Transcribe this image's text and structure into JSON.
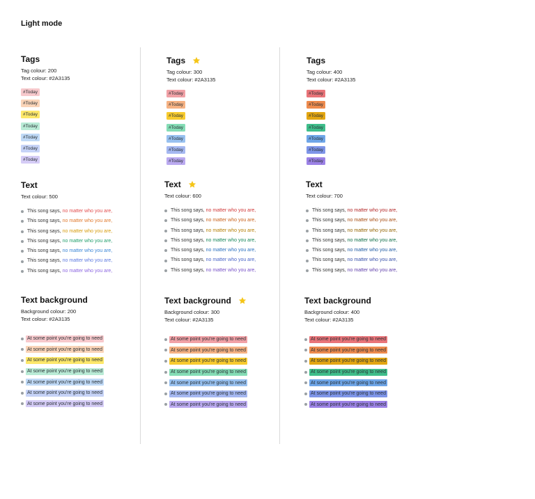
{
  "page": {
    "title": "Light mode"
  },
  "star_color": "#F5C518",
  "columns": [
    {
      "tags": {
        "heading": "Tags",
        "starred": false,
        "tag_colour": "Tag colour: 200",
        "text_colour": "Text colour: #2A3135",
        "tag_label": "#Today",
        "colors": [
          "#F7C9CC",
          "#FAD4B8",
          "#FDE86A",
          "#B9EBD6",
          "#BFD9F6",
          "#C6D3F7",
          "#D5CCF6"
        ]
      },
      "text": {
        "heading": "Text",
        "starred": false,
        "text_colour": "Text colour: 500",
        "prefix": "This song says,",
        "phrase": "no matter who you are,",
        "colors": [
          "#E24C4C",
          "#E0782C",
          "#D69A0A",
          "#1F9E6A",
          "#3B86D6",
          "#5B79E0",
          "#8A64E0"
        ]
      },
      "text_background": {
        "heading": "Text background",
        "starred": false,
        "bg_colour": "Background colour: 200",
        "text_colour": "Text colour: #2A3135",
        "line": "At some point you're going to need",
        "colors": [
          "#F7C9CC",
          "#FAD4B8",
          "#FDE86A",
          "#B9EBD6",
          "#BFD9F6",
          "#C6D3F7",
          "#D5CCF6"
        ]
      }
    },
    {
      "tags": {
        "heading": "Tags",
        "starred": true,
        "tag_colour": "Tag colour: 300",
        "text_colour": "Text colour: #2A3135",
        "tag_label": "#Today",
        "colors": [
          "#F1A1A6",
          "#F6B283",
          "#F8CB2E",
          "#85DDB6",
          "#98C1F0",
          "#A5B8F1",
          "#BBAAF0"
        ]
      },
      "text": {
        "heading": "Text",
        "starred": true,
        "text_colour": "Text colour: 600",
        "prefix": "This song says,",
        "phrase": "no matter who you are,",
        "colors": [
          "#D13838",
          "#C9621C",
          "#B57F05",
          "#16875A",
          "#2B70BF",
          "#4864C7",
          "#7650C7"
        ]
      },
      "text_background": {
        "heading": "Text background",
        "starred": true,
        "bg_colour": "Background colour: 300",
        "text_colour": "Text colour: #2A3135",
        "line": "At some point you're going to need",
        "colors": [
          "#F1A1A6",
          "#F6B283",
          "#F8CB2E",
          "#85DDB6",
          "#98C1F0",
          "#A5B8F1",
          "#BBAAF0"
        ]
      }
    },
    {
      "tags": {
        "heading": "Tags",
        "starred": false,
        "tag_colour": "Tag colour: 400",
        "text_colour": "Text colour: #2A3135",
        "tag_label": "#Today",
        "colors": [
          "#E97479",
          "#EE8B4E",
          "#E3A612",
          "#3FBE8B",
          "#6FA6E8",
          "#7E95E8",
          "#9C82E6"
        ]
      },
      "text": {
        "heading": "Text",
        "starred": false,
        "text_colour": "Text colour: 700",
        "prefix": "This song says,",
        "phrase": "no matter who you are,",
        "colors": [
          "#B32525",
          "#A74C10",
          "#946400",
          "#0D6E47",
          "#1F5AA3",
          "#3750AA",
          "#6140AB"
        ]
      },
      "text_background": {
        "heading": "Text background",
        "starred": false,
        "bg_colour": "Background colour: 400",
        "text_colour": "Text colour: #2A3135",
        "line": "At some point you're going to need",
        "colors": [
          "#E97479",
          "#EE8B4E",
          "#E3A612",
          "#3FBE8B",
          "#6FA6E8",
          "#7E95E8",
          "#9C82E6"
        ]
      }
    }
  ]
}
